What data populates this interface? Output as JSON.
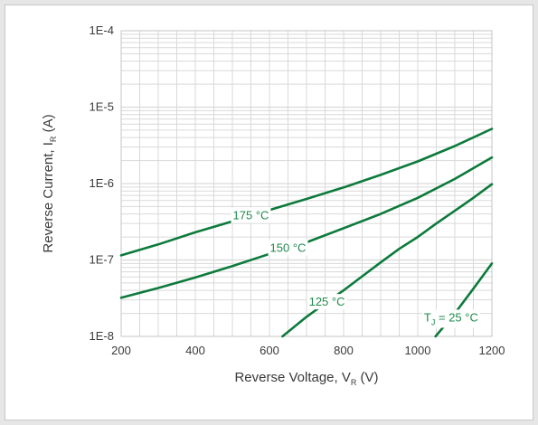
{
  "chart_data": {
    "type": "line",
    "title": "",
    "xlabel": {
      "main": "Reverse Voltage, V",
      "sub": "R",
      "unit": " (V)"
    },
    "ylabel": {
      "main": "Reverse Current, I",
      "sub": "R",
      "unit": " (A)"
    },
    "xlim": [
      200,
      1200
    ],
    "ylim": [
      1e-08,
      0.0001
    ],
    "yscale": "log",
    "grid": true,
    "x_ticks": [
      200,
      400,
      600,
      800,
      1000,
      1200
    ],
    "x_tick_labels": [
      "200",
      "400",
      "600",
      "800",
      "1000",
      "1200"
    ],
    "y_ticks": [
      1e-08,
      1e-07,
      1e-06,
      1e-05,
      0.0001
    ],
    "y_tick_labels": [
      "1E-8",
      "1E-7",
      "1E-6",
      "1E-5",
      "1E-4"
    ],
    "series": [
      {
        "label": "175 °C",
        "x": [
          200,
          300,
          400,
          500,
          600,
          700,
          800,
          900,
          1000,
          1100,
          1200
        ],
        "y": [
          1.15e-07,
          1.6e-07,
          2.3e-07,
          3.2e-07,
          4.5e-07,
          6.3e-07,
          8.9e-07,
          1.3e-06,
          1.95e-06,
          3.1e-06,
          5.2e-06
        ],
        "label_at": 550
      },
      {
        "label": "150 °C",
        "x": [
          200,
          300,
          400,
          500,
          600,
          700,
          800,
          900,
          1000,
          1100,
          1200
        ],
        "y": [
          3.2e-08,
          4.3e-08,
          5.9e-08,
          8.3e-08,
          1.2e-07,
          1.7e-07,
          2.6e-07,
          4e-07,
          6.5e-07,
          1.15e-06,
          2.2e-06
        ],
        "label_at": 650
      },
      {
        "label": "125 °C",
        "x": [
          635,
          700,
          750,
          800,
          850,
          900,
          950,
          1000,
          1050,
          1100,
          1150,
          1200
        ],
        "y": [
          1e-08,
          1.8e-08,
          2.7e-08,
          4e-08,
          6.1e-08,
          9.3e-08,
          1.4e-07,
          2e-07,
          3e-07,
          4.4e-07,
          6.5e-07,
          9.8e-07
        ],
        "label_at": 755
      },
      {
        "label": {
          "main": "T",
          "sub": "J",
          "rest": " = 25 °C"
        },
        "x": [
          1048,
          1100,
          1150,
          1200
        ],
        "y": [
          1e-08,
          2e-08,
          4.2e-08,
          9e-08
        ],
        "label_at": 1090
      }
    ],
    "colors": {
      "line": "#0d7a3c",
      "label": "#1f8a4c",
      "grid": "#d9d9d9",
      "text": "#3a3a3a"
    }
  }
}
